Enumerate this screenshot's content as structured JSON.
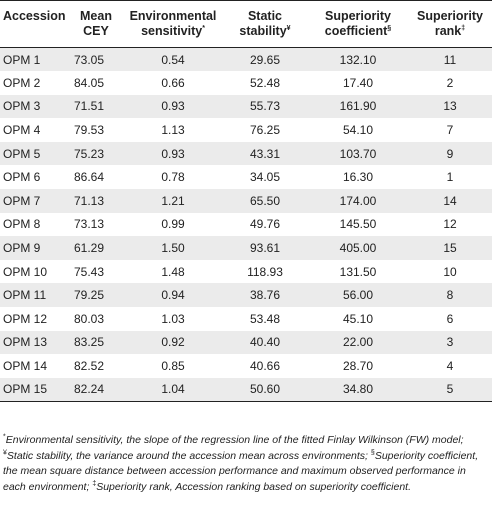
{
  "header": {
    "accession": "Accession",
    "mean_cey": [
      "Mean",
      "CEY"
    ],
    "env_sens": [
      "Environmental",
      "sensitivity"
    ],
    "env_sens_mark": "*",
    "static_stab": [
      "Static",
      "stability"
    ],
    "static_stab_mark": "¥",
    "sup_coef": [
      "Superiority",
      "coefficient"
    ],
    "sup_coef_mark": "§",
    "sup_rank": [
      "Superiority",
      "rank"
    ],
    "sup_rank_mark": "‡"
  },
  "rows": [
    {
      "acc": "OPM 1",
      "cey": "73.05",
      "es": "0.54",
      "ss": "29.65",
      "sc": "132.10",
      "rank": "11"
    },
    {
      "acc": "OPM 2",
      "cey": "84.05",
      "es": "0.66",
      "ss": "52.48",
      "sc": "17.40",
      "rank": "2"
    },
    {
      "acc": "OPM 3",
      "cey": "71.51",
      "es": "0.93",
      "ss": "55.73",
      "sc": "161.90",
      "rank": "13"
    },
    {
      "acc": "OPM 4",
      "cey": "79.53",
      "es": "1.13",
      "ss": "76.25",
      "sc": "54.10",
      "rank": "7"
    },
    {
      "acc": "OPM 5",
      "cey": "75.23",
      "es": "0.93",
      "ss": "43.31",
      "sc": "103.70",
      "rank": "9"
    },
    {
      "acc": "OPM 6",
      "cey": "86.64",
      "es": "0.78",
      "ss": "34.05",
      "sc": "16.30",
      "rank": "1"
    },
    {
      "acc": "OPM 7",
      "cey": "71.13",
      "es": "1.21",
      "ss": "65.50",
      "sc": "174.00",
      "rank": "14"
    },
    {
      "acc": "OPM 8",
      "cey": "73.13",
      "es": "0.99",
      "ss": "49.76",
      "sc": "145.50",
      "rank": "12"
    },
    {
      "acc": "OPM 9",
      "cey": "61.29",
      "es": "1.50",
      "ss": "93.61",
      "sc": "405.00",
      "rank": "15"
    },
    {
      "acc": "OPM 10",
      "cey": "75.43",
      "es": "1.48",
      "ss": "118.93",
      "sc": "131.50",
      "rank": "10"
    },
    {
      "acc": "OPM 11",
      "cey": "79.25",
      "es": "0.94",
      "ss": "38.76",
      "sc": "56.00",
      "rank": "8"
    },
    {
      "acc": "OPM 12",
      "cey": "80.03",
      "es": "1.03",
      "ss": "53.48",
      "sc": "45.10",
      "rank": "6"
    },
    {
      "acc": "OPM 13",
      "cey": "83.25",
      "es": "0.92",
      "ss": "40.40",
      "sc": "22.00",
      "rank": "3"
    },
    {
      "acc": "OPM 14",
      "cey": "82.52",
      "es": "0.85",
      "ss": "40.66",
      "sc": "28.70",
      "rank": "4"
    },
    {
      "acc": "OPM 15",
      "cey": "82.24",
      "es": "1.04",
      "ss": "50.60",
      "sc": "34.80",
      "rank": "5"
    }
  ],
  "footnote": {
    "m1": "*",
    "t1": "Environmental sensitivity, the slope of the regression line of the fitted Finlay Wilkinson (FW) model; ",
    "m2": "¥",
    "t2": "Static stability, the variance around the accession mean across environments; ",
    "m3": "§",
    "t3": "Superiority coefficient, the mean square distance between accession performance and maximum observed performance in each environment; ",
    "m4": "‡",
    "t4": "Superiority rank, Accession ranking based on superiority coefficient."
  }
}
